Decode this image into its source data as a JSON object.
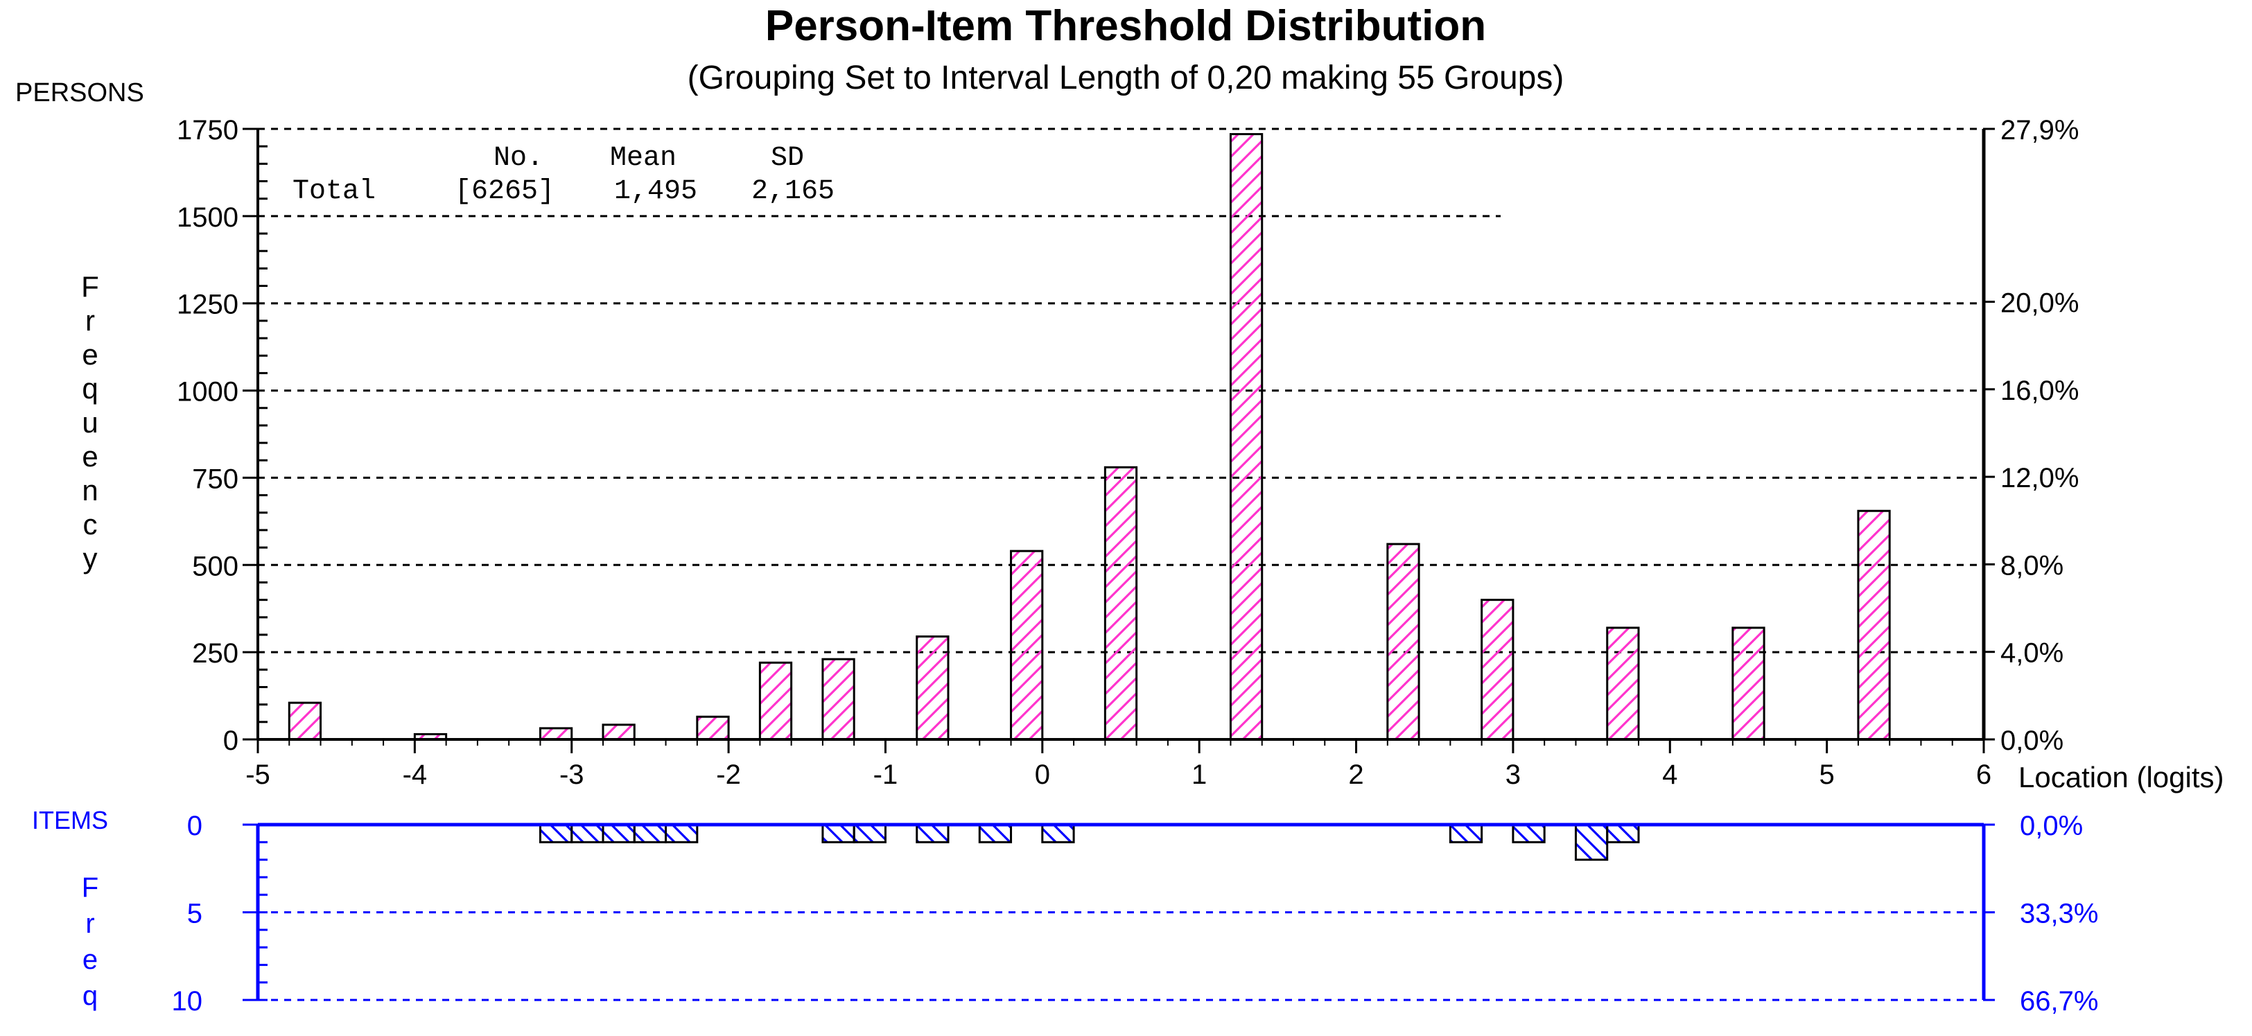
{
  "chart_data": {
    "type": "bar",
    "title": "Person-Item Threshold Distribution",
    "subtitle": "(Grouping Set to Interval Length of  0,20  making  55  Groups)",
    "xlabel": "Location (logits)",
    "x_ticks": [
      "-5",
      "-4",
      "-3",
      "-2",
      "-1",
      "0",
      "1",
      "2",
      "3",
      "4",
      "5",
      "6"
    ],
    "xlim": [
      -5,
      6
    ],
    "grid": true,
    "persons": {
      "section_label": "PERSONS",
      "ylabel": "Frequency",
      "ylim": [
        0,
        1750
      ],
      "y_ticks": [
        "0",
        "250",
        "500",
        "750",
        "1000",
        "1250",
        "1500",
        "1750"
      ],
      "right_ticks": [
        "0,0%",
        "4,0%",
        "8,0%",
        "12,0%",
        "16,0%",
        "20,0%",
        "27,9%"
      ],
      "color": "#ff33cc",
      "summary": {
        "headers": [
          "No.",
          "Mean",
          "SD"
        ],
        "row_label": "Total",
        "values": [
          "[6265]",
          "1,495",
          "2,165"
        ]
      },
      "bars": [
        {
          "x": -4.7,
          "value": 105
        },
        {
          "x": -3.9,
          "value": 15
        },
        {
          "x": -3.1,
          "value": 32
        },
        {
          "x": -2.7,
          "value": 42
        },
        {
          "x": -2.1,
          "value": 65
        },
        {
          "x": -1.7,
          "value": 220
        },
        {
          "x": -1.3,
          "value": 230
        },
        {
          "x": -0.7,
          "value": 295
        },
        {
          "x": -0.1,
          "value": 540
        },
        {
          "x": 0.5,
          "value": 780
        },
        {
          "x": 1.3,
          "value": 1735
        },
        {
          "x": 2.3,
          "value": 560
        },
        {
          "x": 2.9,
          "value": 400
        },
        {
          "x": 3.7,
          "value": 320
        },
        {
          "x": 4.5,
          "value": 320
        },
        {
          "x": 5.3,
          "value": 655
        }
      ]
    },
    "items": {
      "section_label": "ITEMS",
      "ylabel": "Freq",
      "ylim": [
        0,
        10
      ],
      "y_ticks": [
        "0",
        "5",
        "10"
      ],
      "right_ticks": [
        "0,0%",
        "33,3%",
        "66,7%"
      ],
      "color": "#0000ff",
      "bars": [
        {
          "x": -3.1,
          "value": 1
        },
        {
          "x": -2.9,
          "value": 1
        },
        {
          "x": -2.7,
          "value": 1
        },
        {
          "x": -2.5,
          "value": 1
        },
        {
          "x": -2.3,
          "value": 1
        },
        {
          "x": -1.3,
          "value": 1
        },
        {
          "x": -1.1,
          "value": 1
        },
        {
          "x": -0.7,
          "value": 1
        },
        {
          "x": -0.3,
          "value": 1
        },
        {
          "x": 0.1,
          "value": 1
        },
        {
          "x": 2.7,
          "value": 1
        },
        {
          "x": 3.1,
          "value": 1
        },
        {
          "x": 3.5,
          "value": 2
        },
        {
          "x": 3.7,
          "value": 1
        }
      ]
    }
  }
}
